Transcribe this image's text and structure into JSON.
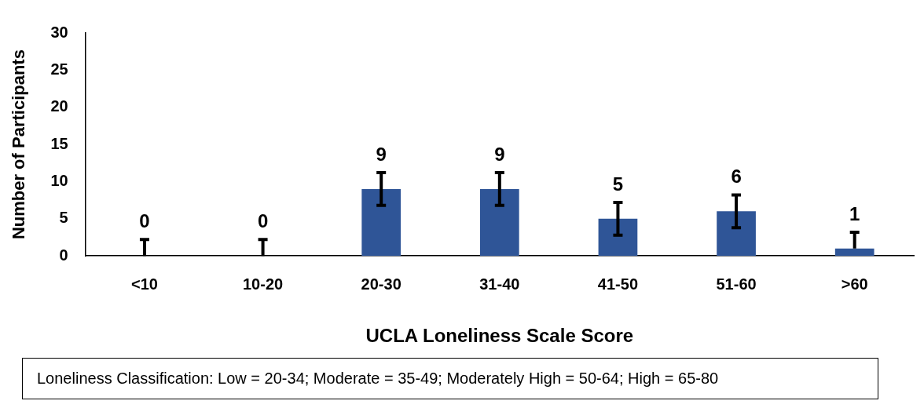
{
  "chart_data": {
    "type": "bar",
    "xlabel": "UCLA Loneliness Scale Score",
    "ylabel": "Number of Participants",
    "categories": [
      "<10",
      "10-20",
      "20-30",
      "31-40",
      "41-50",
      "51-60",
      ">60"
    ],
    "values": [
      0,
      0,
      9,
      9,
      5,
      6,
      1
    ],
    "errors": [
      [
        0,
        2.2
      ],
      [
        0,
        2.2
      ],
      2.2,
      2.2,
      2.2,
      2.2,
      [
        1,
        3.2
      ]
    ],
    "color": "#2f5597",
    "ylim": [
      0,
      30
    ],
    "yticks": [
      0,
      5,
      10,
      15,
      20,
      25,
      30
    ],
    "grid": false,
    "legend": false,
    "data_labels": true,
    "annotations": [
      "Loneliness Classification: Low = 20-34; Moderate = 35-49; Moderately High = 50-64; High = 65-80"
    ]
  }
}
